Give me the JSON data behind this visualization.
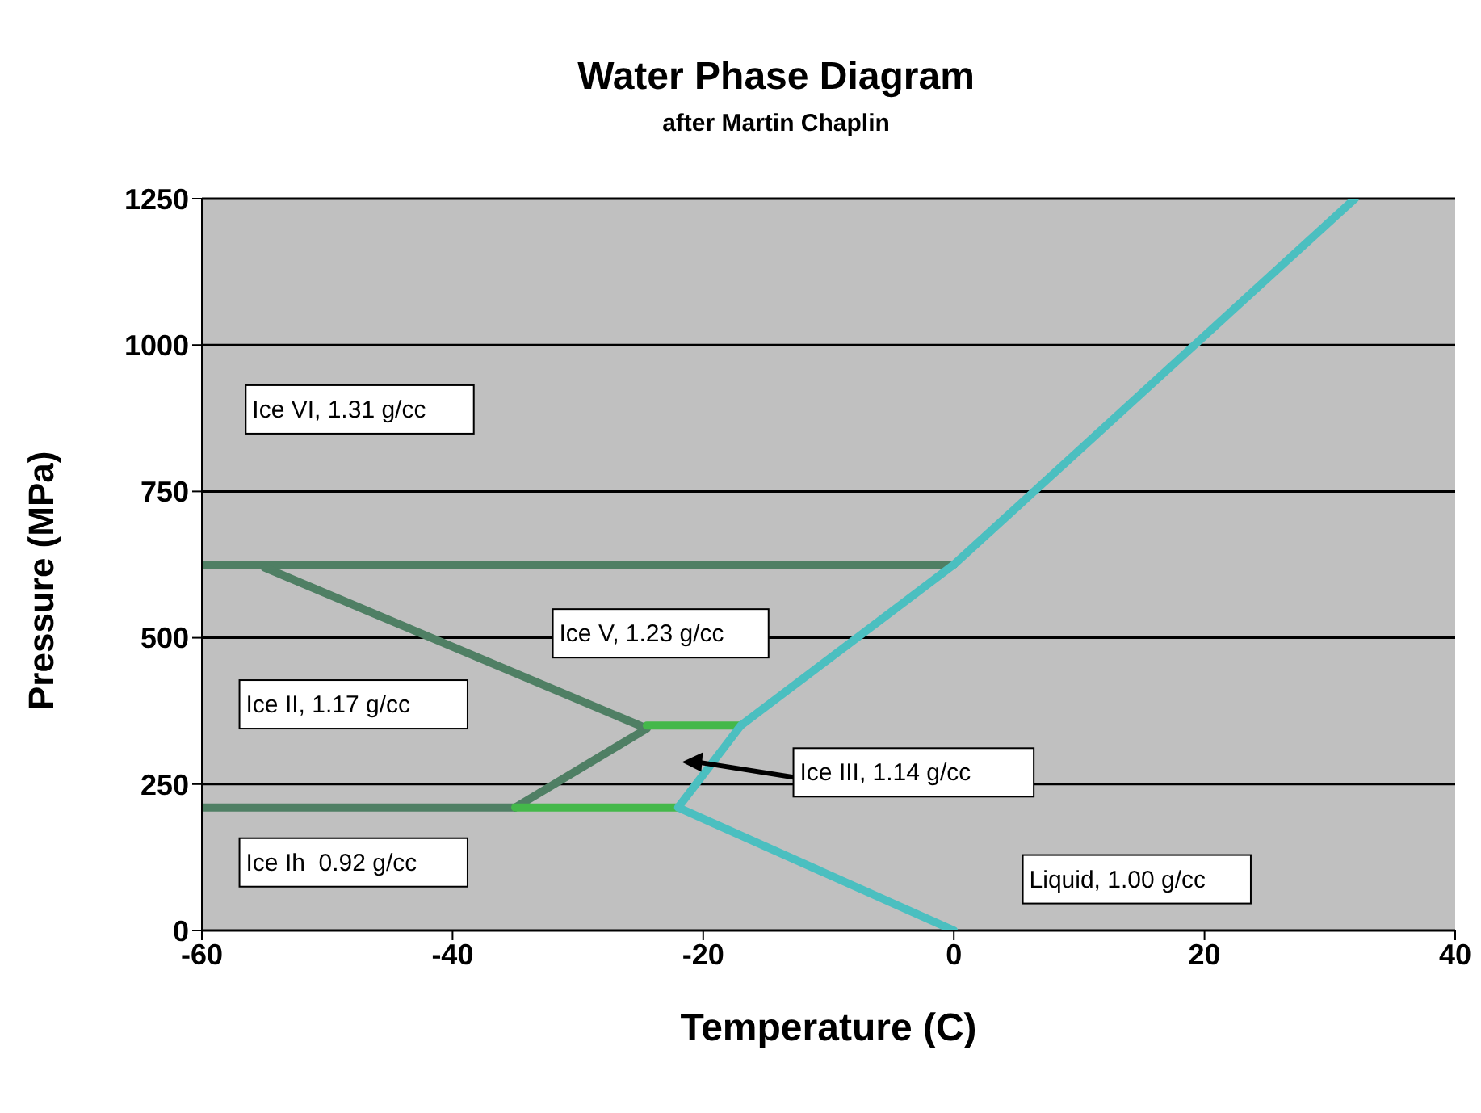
{
  "chart_data": {
    "type": "line",
    "title": "Water Phase Diagram",
    "subtitle": "after Martin Chaplin",
    "xlabel": "Temperature (C)",
    "ylabel": "Pressure (MPa)",
    "xlim": [
      -60,
      40
    ],
    "xticks": [
      -60,
      -40,
      -20,
      0,
      20,
      40
    ],
    "ylim": [
      0,
      1250
    ],
    "yticks": [
      0,
      250,
      500,
      750,
      1000,
      1250
    ],
    "grid": "y",
    "marker": "none",
    "line_style": "solid",
    "series": [
      {
        "color": "#4f7f64",
        "x": [
          -60,
          0
        ],
        "values": [
          625,
          625
        ]
      },
      {
        "color": "#4f7f64",
        "x": [
          -55,
          -24.5,
          -35
        ],
        "values": [
          620,
          345,
          210
        ]
      },
      {
        "color": "#4f7f64",
        "x": [
          -60,
          -35
        ],
        "values": [
          210,
          210
        ]
      },
      {
        "color": "#44b84a",
        "x": [
          -24.5,
          -17
        ],
        "values": [
          350,
          350
        ]
      },
      {
        "color": "#44b84a",
        "x": [
          -35,
          -22
        ],
        "values": [
          210,
          210
        ]
      },
      {
        "color": "#4bbfc0",
        "x": [
          0,
          -22,
          -17,
          0,
          32
        ],
        "values": [
          0,
          210,
          350,
          625,
          1250
        ]
      }
    ],
    "annotations": [
      "Ice VI, 1.31 g/cc",
      "Ice V, 1.23 g/cc",
      "Ice II, 1.17 g/cc",
      "Ice III, 1.14 g/cc",
      "Ice Ih  0.92 g/cc",
      "Liquid, 1.00 g/cc"
    ]
  }
}
